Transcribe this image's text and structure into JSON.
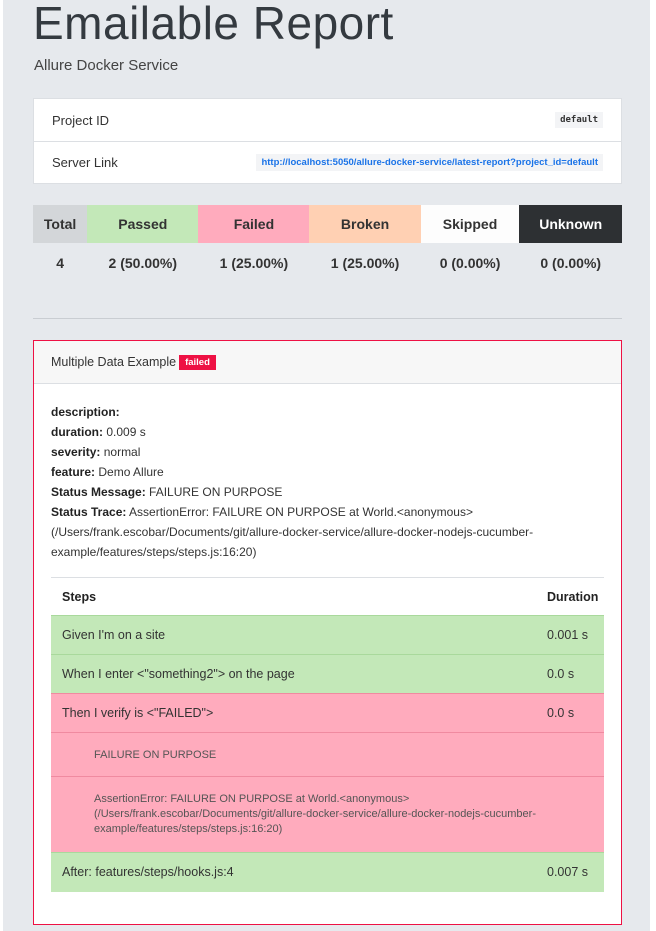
{
  "header": {
    "title": "Emailable Report",
    "subtitle": "Allure Docker Service"
  },
  "info": {
    "project_id_label": "Project ID",
    "project_id": "default",
    "server_link_label": "Server Link",
    "server_link": "http://localhost:5050/allure-docker-service/latest-report?project_id=default"
  },
  "stats": {
    "headers": [
      "Total",
      "Passed",
      "Failed",
      "Broken",
      "Skipped",
      "Unknown"
    ],
    "values": [
      "4",
      "2 (50.00%)",
      "1 (25.00%)",
      "1 (25.00%)",
      "0 (0.00%)",
      "0 (0.00%)"
    ],
    "colors": [
      "#d3d6d9",
      "#c3e8b8",
      "#ffabbd",
      "#ffd0b3",
      "#fdfdfd",
      "#2d3033"
    ]
  },
  "test": {
    "name": "Multiple Data Example",
    "status": "failed",
    "description_label": "description:",
    "duration_label": "duration:",
    "duration": "0.009 s",
    "severity_label": "severity:",
    "severity": "normal",
    "feature_label": "feature:",
    "feature": "Demo Allure",
    "status_message_label": "Status Message:",
    "status_message": "FAILURE ON PURPOSE",
    "status_trace_label": "Status Trace:",
    "status_trace": "AssertionError: FAILURE ON PURPOSE at World.<anonymous> (/Users/frank.escobar/Documents/git/allure-docker-service/allure-docker-nodejs-cucumber-example/features/steps/steps.js:16:20)",
    "steps_header": "Steps",
    "duration_header": "Duration",
    "steps": [
      {
        "name": "Given I'm on a site",
        "duration": "0.001 s"
      },
      {
        "name": "When I enter <\"something2\"> on the page",
        "duration": "0.0 s"
      },
      {
        "name": "Then I verify is <\"FAILED\">",
        "duration": "0.0 s",
        "message": "FAILURE ON PURPOSE",
        "trace": "AssertionError: FAILURE ON PURPOSE at World.<anonymous> (/Users/frank.escobar/Documents/git/allure-docker-service/allure-docker-nodejs-cucumber-example/features/steps/steps.js:16:20)"
      },
      {
        "name": "After: features/steps/hooks.js:4",
        "duration": "0.007 s"
      }
    ]
  }
}
